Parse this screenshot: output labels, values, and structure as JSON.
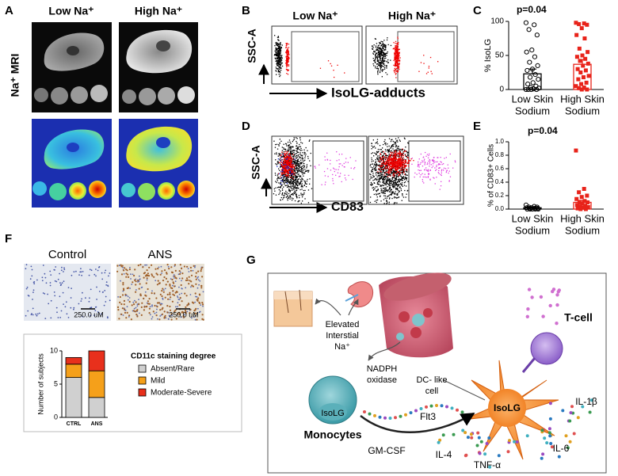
{
  "panel_a": {
    "label": "A",
    "columns": [
      "Low Na⁺",
      "High Na⁺"
    ],
    "row_label": "Na⁺ MRI"
  },
  "panel_b": {
    "label": "B",
    "columns": [
      "Low Na⁺",
      "High Na⁺"
    ],
    "y_label": "SSC-A",
    "x_label": "IsoLG-adducts"
  },
  "panel_c": {
    "label": "C",
    "type": "bar",
    "annotation": "p=0.04",
    "y_label": "% IsoLG",
    "categories": [
      [
        "Low Skin",
        "Sodium"
      ],
      [
        "High Skin",
        "Sodium"
      ]
    ],
    "values": [
      23,
      37
    ],
    "errors": [
      7,
      7
    ],
    "colors": [
      "#000000",
      "#e8231a"
    ],
    "points": [
      [
        98,
        95,
        88,
        80,
        58,
        55,
        48,
        40,
        35,
        30,
        28,
        22,
        18,
        15,
        10,
        8,
        5,
        3,
        2,
        1,
        0,
        0,
        0,
        0
      ],
      [
        98,
        97,
        96,
        95,
        90,
        80,
        75,
        60,
        55,
        50,
        48,
        45,
        42,
        38,
        35,
        30,
        28,
        25,
        20,
        18,
        15,
        10,
        8,
        5,
        3,
        2,
        0,
        0
      ]
    ],
    "ylim": [
      0,
      100
    ],
    "yticks": [
      0,
      50,
      100
    ]
  },
  "panel_d": {
    "label": "D",
    "y_label": "SSC-A",
    "x_label": "CD83"
  },
  "panel_e": {
    "label": "E",
    "type": "bar",
    "annotation": "p=0.04",
    "y_label": "% of CD83+ Cells",
    "categories": [
      [
        "Low Skin",
        "Sodium"
      ],
      [
        "High Skin",
        "Sodium"
      ]
    ],
    "values": [
      0.02,
      0.1
    ],
    "errors": [
      0.01,
      0.03
    ],
    "colors": [
      "#000000",
      "#e8231a"
    ],
    "points": [
      [
        0.06,
        0.04,
        0.03,
        0.03,
        0.02,
        0.02,
        0.01,
        0.01,
        0.01,
        0,
        0,
        0,
        0,
        0
      ],
      [
        0.87,
        0.3,
        0.25,
        0.2,
        0.18,
        0.15,
        0.12,
        0.1,
        0.1,
        0.08,
        0.06,
        0.05,
        0.04,
        0.03,
        0.02,
        0.01,
        0,
        0
      ]
    ],
    "ylim": [
      0,
      1
    ],
    "yticks": [
      {
        "value": 0,
        "label": "0.0"
      },
      0.2,
      0.4,
      0.6,
      0.8,
      {
        "value": 1,
        "label": "1.0"
      }
    ]
  },
  "panel_f": {
    "label": "F",
    "images": [
      "Control",
      "ANS"
    ],
    "scale_bars": [
      "250.0 uM",
      "250.0 uM"
    ],
    "chart": {
      "type": "stacked_bar",
      "y_label": "Number of subjects",
      "categories": [
        "CTRL",
        "ANS"
      ],
      "legend_title": "CD11c staining degree",
      "series": [
        {
          "name": "Absent/Rare",
          "color": "#d0d0d0",
          "values": [
            6,
            3
          ]
        },
        {
          "name": "Mild",
          "color": "#f5a01a",
          "values": [
            2,
            4
          ]
        },
        {
          "name": "Moderate-Severe",
          "color": "#e8301c",
          "values": [
            1,
            3
          ]
        }
      ],
      "ylim": [
        0,
        10
      ],
      "yticks": [
        0,
        5,
        10
      ]
    }
  },
  "panel_g": {
    "label": "G",
    "elevated": [
      "Elevated",
      "Interstial",
      "Na⁺"
    ],
    "nadph": [
      "NADPH",
      "oxidase"
    ],
    "monocyte_isolg": "IsoLG",
    "monocytes": "Monocytes",
    "dc": [
      "DC- like",
      "cell"
    ],
    "dc_isolg": "IsoLG",
    "t_cell": "T-cell",
    "cytokines": [
      "Flt3",
      "GM-CSF",
      "IL-4",
      "TNF-α",
      "IL-6",
      "IL-1β"
    ]
  }
}
